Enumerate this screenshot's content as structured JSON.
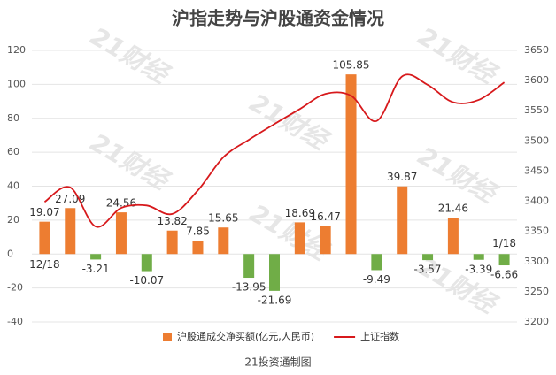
{
  "chart_data": {
    "type": "bar",
    "title": "沪指走势与沪股通资金情况",
    "footer": "21投资通制图",
    "watermark": "21财经",
    "categories": [
      "12/18",
      null,
      null,
      null,
      null,
      null,
      null,
      null,
      null,
      null,
      null,
      null,
      null,
      null,
      null,
      null,
      null,
      null,
      "1/18"
    ],
    "series": [
      {
        "name": "沪股通成交净买额(亿元,人民币)",
        "type": "bar",
        "color": "#ed7d31",
        "negative_color": "#70ad47",
        "values": [
          19.07,
          27.09,
          -3.21,
          24.56,
          -10.07,
          13.82,
          7.85,
          15.65,
          -13.95,
          -21.69,
          18.69,
          16.47,
          105.85,
          -9.49,
          39.87,
          -3.57,
          21.46,
          -3.39,
          -6.66
        ]
      },
      {
        "name": "上证指数",
        "type": "line",
        "axis": "y2",
        "color": "#d7191c",
        "values": [
          3399,
          3423,
          3358,
          3389,
          3393,
          3379,
          3418,
          3473,
          3502,
          3528,
          3553,
          3578,
          3575,
          3533,
          3607,
          3593,
          3564,
          3568,
          3597
        ]
      }
    ],
    "ylim": [
      -40,
      120
    ],
    "yticks": [
      -40,
      -20,
      0,
      20,
      40,
      60,
      80,
      100,
      120
    ],
    "y2lim": [
      3200,
      3650
    ],
    "y2ticks": [
      3200,
      3250,
      3300,
      3350,
      3400,
      3450,
      3500,
      3550,
      3600,
      3650
    ],
    "grid": true,
    "legend": "bottom"
  }
}
